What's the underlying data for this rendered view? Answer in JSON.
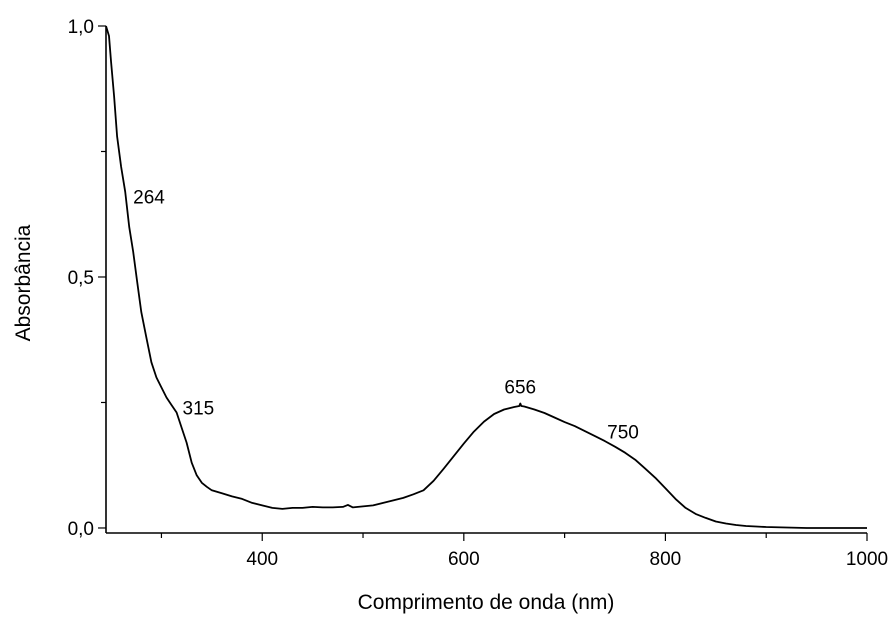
{
  "chart_data": {
    "type": "line",
    "title": "",
    "xlabel": "Comprimento de onda (nm)",
    "ylabel": "Absorbância",
    "xlim": [
      245,
      1000
    ],
    "ylim": [
      -0.01,
      1.0
    ],
    "grid": false,
    "x_ticks": [
      {
        "value": 400,
        "label": "400"
      },
      {
        "value": 600,
        "label": "600"
      },
      {
        "value": 800,
        "label": "800"
      },
      {
        "value": 1000,
        "label": "1000"
      }
    ],
    "x_minor_ticks": [
      300,
      500,
      700,
      900
    ],
    "y_ticks": [
      {
        "value": 0.0,
        "label": "0,0"
      },
      {
        "value": 0.5,
        "label": "0,5"
      },
      {
        "value": 1.0,
        "label": "1,0"
      }
    ],
    "y_minor_ticks": [
      0.25,
      0.75
    ],
    "series": [
      {
        "x": [
          245,
          248,
          250,
          253,
          256,
          260,
          264,
          268,
          272,
          276,
          280,
          285,
          290,
          295,
          300,
          305,
          310,
          315,
          320,
          325,
          330,
          335,
          340,
          345,
          350,
          360,
          370,
          380,
          390,
          400,
          410,
          420,
          430,
          440,
          450,
          460,
          470,
          480,
          485,
          490,
          500,
          510,
          520,
          530,
          540,
          550,
          560,
          570,
          580,
          590,
          600,
          610,
          620,
          630,
          640,
          650,
          655,
          656,
          657,
          660,
          670,
          680,
          690,
          700,
          710,
          720,
          730,
          740,
          750,
          760,
          770,
          780,
          790,
          800,
          810,
          820,
          830,
          840,
          850,
          860,
          870,
          880,
          890,
          900,
          920,
          940,
          960,
          980,
          1000
        ],
        "y": [
          1.0,
          0.98,
          0.93,
          0.86,
          0.78,
          0.72,
          0.67,
          0.6,
          0.55,
          0.49,
          0.43,
          0.38,
          0.33,
          0.3,
          0.28,
          0.26,
          0.245,
          0.23,
          0.2,
          0.17,
          0.13,
          0.105,
          0.09,
          0.082,
          0.075,
          0.069,
          0.063,
          0.058,
          0.05,
          0.045,
          0.04,
          0.038,
          0.04,
          0.04,
          0.042,
          0.041,
          0.041,
          0.042,
          0.046,
          0.041,
          0.043,
          0.045,
          0.05,
          0.055,
          0.06,
          0.067,
          0.075,
          0.094,
          0.118,
          0.143,
          0.168,
          0.192,
          0.212,
          0.227,
          0.236,
          0.241,
          0.243,
          0.248,
          0.243,
          0.242,
          0.236,
          0.229,
          0.22,
          0.211,
          0.203,
          0.193,
          0.183,
          0.173,
          0.162,
          0.15,
          0.136,
          0.118,
          0.1,
          0.079,
          0.058,
          0.04,
          0.028,
          0.02,
          0.013,
          0.009,
          0.006,
          0.004,
          0.003,
          0.002,
          0.001,
          0.0,
          0.0,
          0.0,
          0.0
        ]
      }
    ],
    "annotations": [
      {
        "text": "264",
        "x": 264,
        "y": 0.67
      },
      {
        "text": "315",
        "x": 315,
        "y": 0.23
      },
      {
        "text": "656",
        "x": 656,
        "y": 0.248
      },
      {
        "text": "750",
        "x": 750,
        "y": 0.162
      }
    ]
  }
}
